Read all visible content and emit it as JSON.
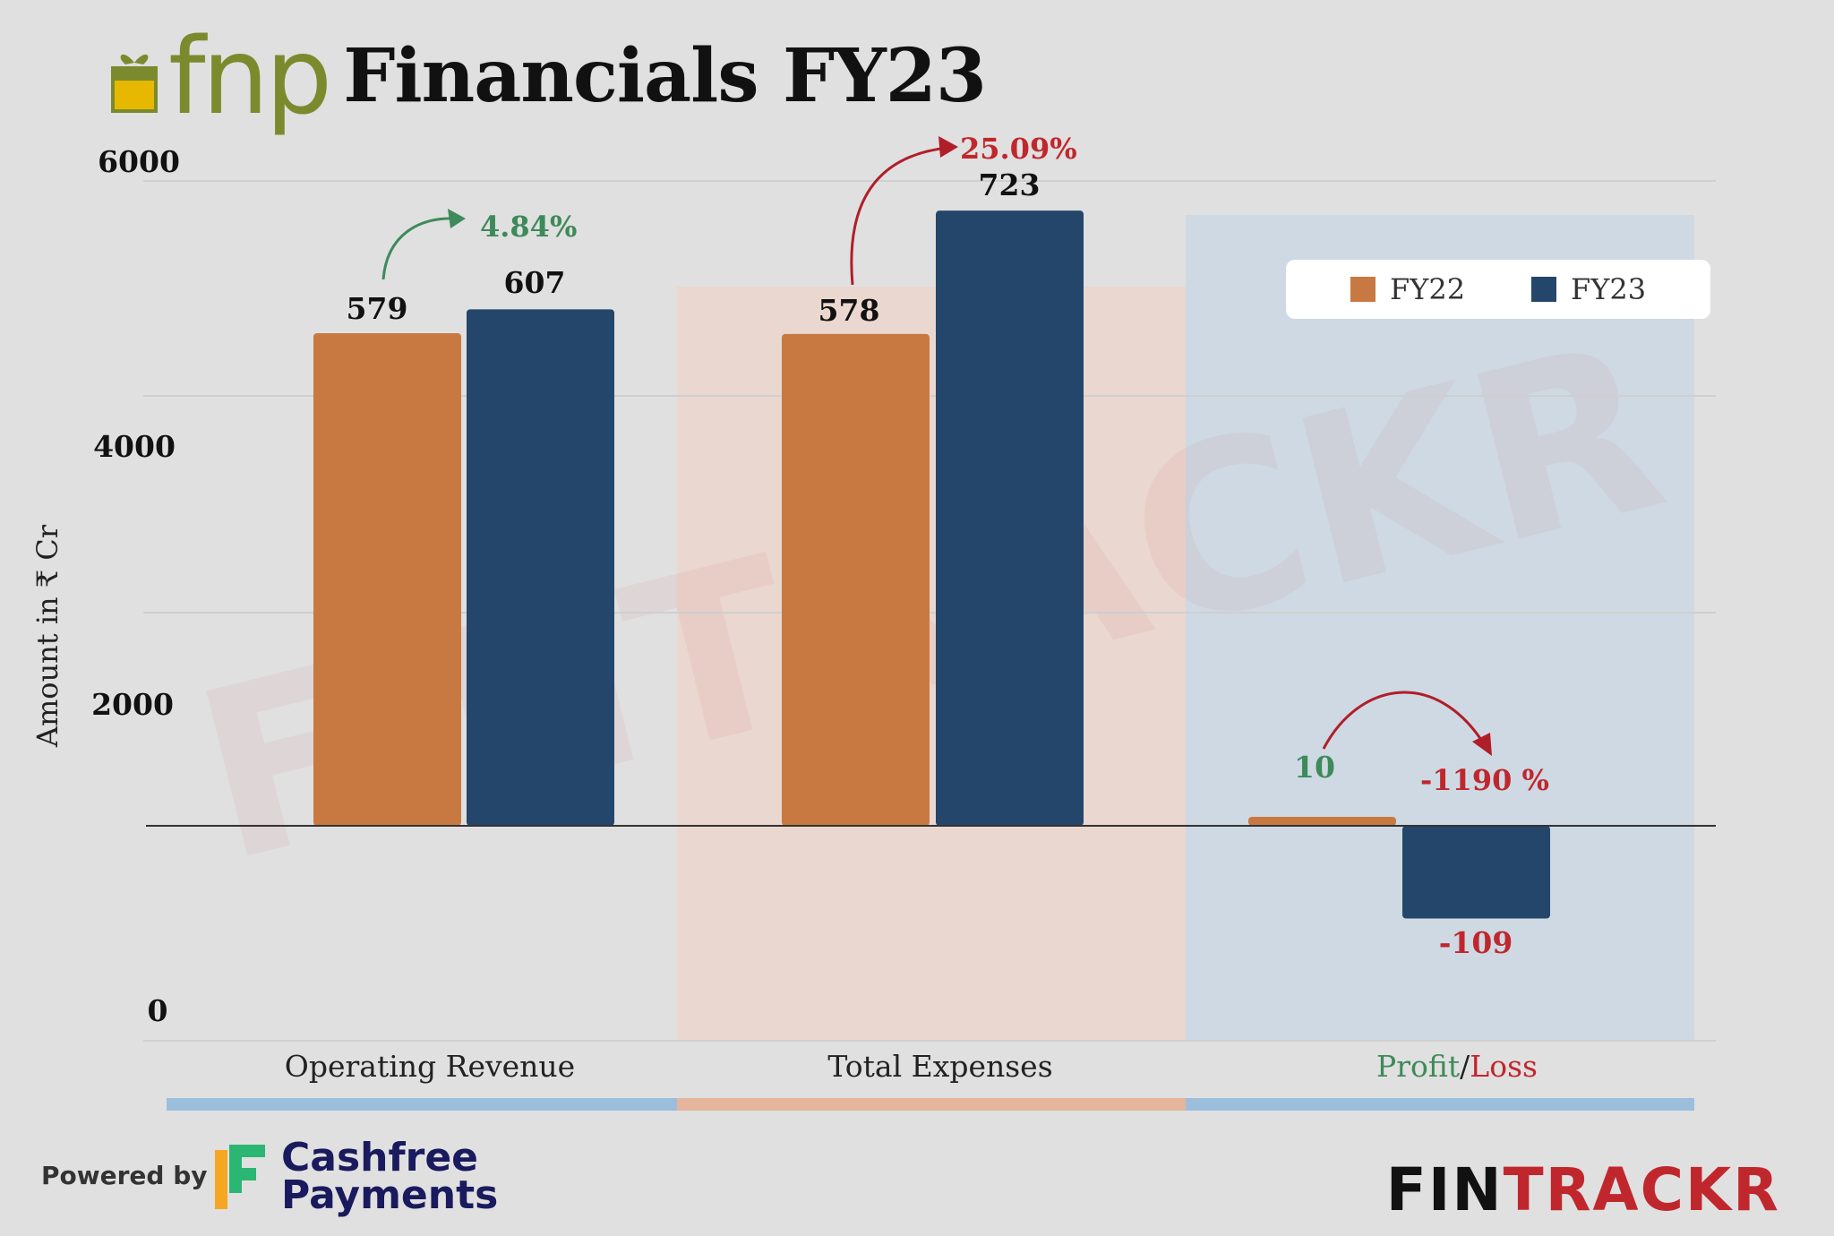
{
  "brand": {
    "logo_text": "fnp",
    "title": "Financials FY23"
  },
  "chart_data": {
    "type": "bar",
    "title": "Financials FY23",
    "ylabel": "Amount in ₹ Cr",
    "xlabel": "",
    "y_ticks": [
      "0",
      "2000",
      "4000",
      "6000"
    ],
    "categories": [
      "Operating Revenue",
      "Total Expenses",
      "Profit/Loss"
    ],
    "series": [
      {
        "name": "FY22",
        "values": [
          579,
          578,
          10
        ],
        "labels": [
          "579",
          "578",
          "10"
        ]
      },
      {
        "name": "FY23",
        "values": [
          607,
          723,
          -109
        ],
        "labels": [
          "607",
          "723",
          "-109"
        ]
      }
    ],
    "changes": [
      "4.84%",
      "25.09%",
      "-1190 %"
    ],
    "category_label_parts": {
      "profit": "Profit",
      "slash": "/",
      "loss": "Loss"
    },
    "legend": [
      "FY22",
      "FY23"
    ],
    "legend_position": "top-right",
    "watermark": "FINTRACKR",
    "colors": {
      "FY22": "#c87941",
      "FY23": "#24466b",
      "positive": "#3e8a5a",
      "negative": "#c0272d",
      "panel_revenue": "#dfdfdf",
      "panel_expenses": "#ebd5cb",
      "panel_profit": "#ccd8e3",
      "strip_blue": "#9cbedd",
      "strip_orange": "#e5b59c"
    }
  },
  "footer": {
    "powered_by": "Powered by",
    "partner_line1": "Cashfree",
    "partner_line2": "Payments",
    "fintrackr_part1": "FIN",
    "fintrackr_part2": "TRACKR"
  }
}
